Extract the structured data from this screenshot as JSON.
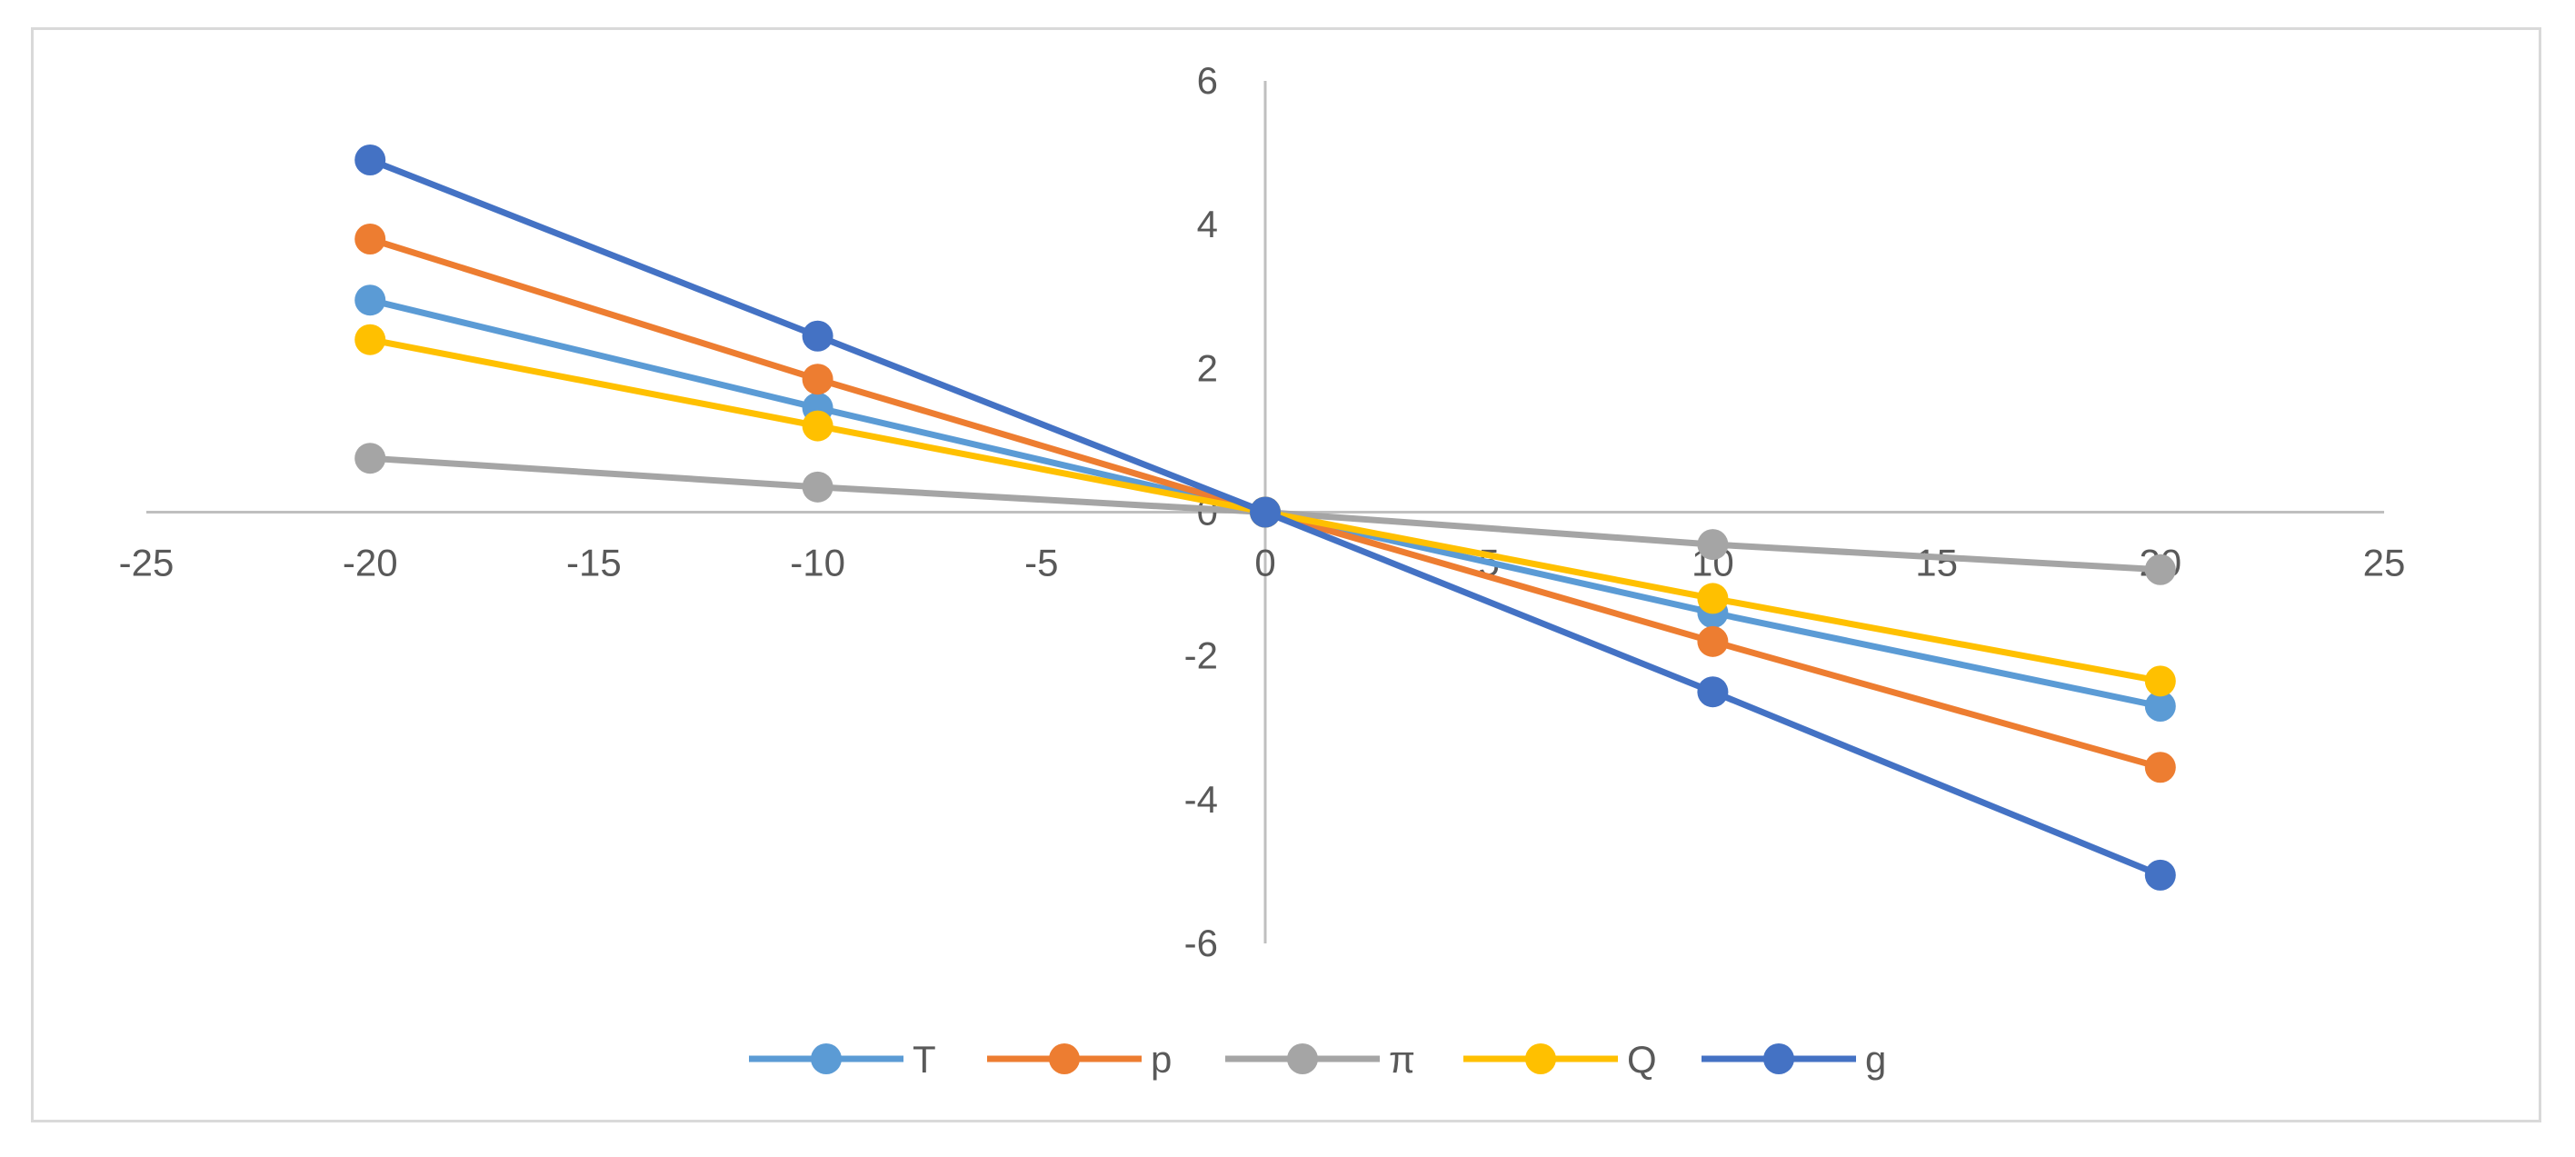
{
  "chart_data": {
    "type": "line",
    "xlim": [
      -25,
      25
    ],
    "ylim": [
      -6,
      6
    ],
    "x_ticks": [
      -25,
      -20,
      -15,
      -10,
      -5,
      0,
      5,
      10,
      15,
      20,
      25
    ],
    "y_ticks": [
      -6,
      -4,
      -2,
      0,
      2,
      4,
      6
    ],
    "x_tick_labels": [
      "-25",
      "-20",
      "-15",
      "-10",
      "-5",
      "0",
      "5",
      "10",
      "15",
      "20",
      "25"
    ],
    "y_tick_labels": [
      "-6",
      "-4",
      "-2",
      "0",
      "2",
      "4",
      "6"
    ],
    "grid": false,
    "legend_position": "bottom",
    "x": [
      -20,
      -10,
      0,
      10,
      20
    ],
    "series": [
      {
        "name": "T",
        "color": "#5B9BD5",
        "values": [
          2.95,
          1.45,
          0,
          -1.4,
          -2.7
        ]
      },
      {
        "name": "p",
        "color": "#ED7D31",
        "values": [
          3.8,
          1.85,
          0,
          -1.8,
          -3.55
        ]
      },
      {
        "name": "π",
        "color": "#A5A5A5",
        "values": [
          0.75,
          0.35,
          0,
          -0.45,
          -0.8
        ]
      },
      {
        "name": "Q",
        "color": "#FFC000",
        "values": [
          2.4,
          1.2,
          0,
          -1.2,
          -2.35
        ]
      },
      {
        "name": "g",
        "color": "#4472C4",
        "values": [
          4.9,
          2.45,
          0,
          -2.5,
          -5.05
        ]
      }
    ]
  }
}
